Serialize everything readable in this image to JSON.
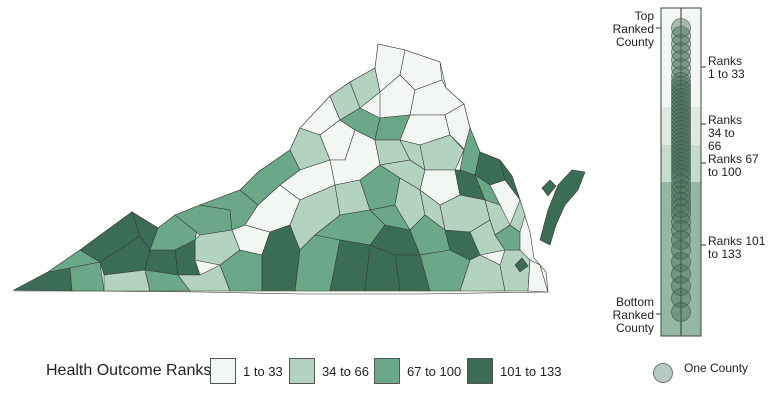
{
  "legend": {
    "title": "Health Outcome Ranks",
    "bins": [
      {
        "label": "1 to 33",
        "color": "#f3f7f4"
      },
      {
        "label": "34 to 66",
        "color": "#b3d2c0"
      },
      {
        "label": "67 to 100",
        "color": "#6aa888"
      },
      {
        "label": "101 to 133",
        "color": "#3b6c55"
      }
    ]
  },
  "rank_strip": {
    "top_label": "Top Ranked County",
    "bottom_label": "Bottom Ranked County",
    "bands": [
      {
        "label": "Ranks 1 to 33",
        "color": "#f3f7f4"
      },
      {
        "label": "Ranks 34 to 66",
        "color": "#dceae2"
      },
      {
        "label": "Ranks 67 to 100",
        "color": "#c4dbcd"
      },
      {
        "label": "Ranks 101 to 133",
        "color": "#94b8a3"
      }
    ],
    "point_legend_label": "One County"
  }
}
